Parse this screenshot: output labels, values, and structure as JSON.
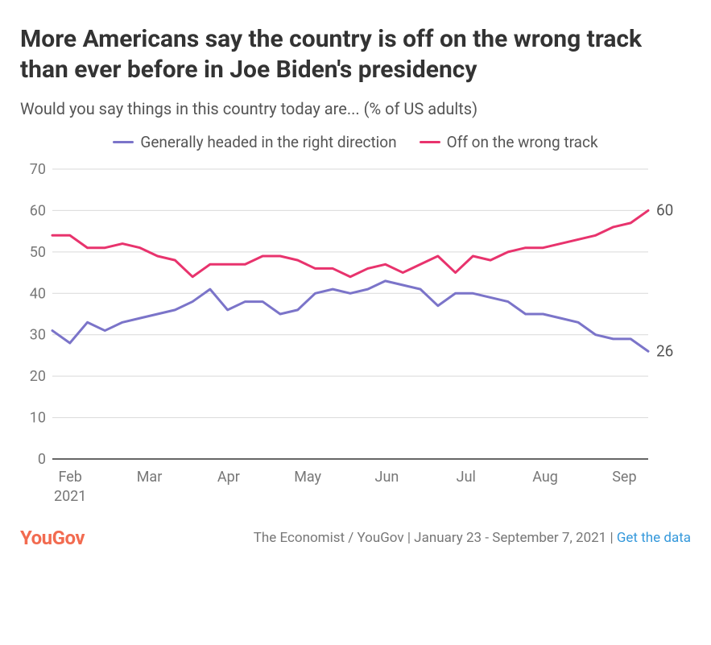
{
  "title": "More Americans say the country is off on the wrong track than ever before in Joe Biden's presidency",
  "subtitle": "Would you say things in this country today are... (% of US adults)",
  "chart": {
    "type": "line",
    "background_color": "#ffffff",
    "grid_color": "#d9d9d9",
    "axis_color": "#333333",
    "text_color": "#777777",
    "label_fontsize": 18,
    "ylim": [
      0,
      70
    ],
    "ytick_step": 10,
    "yticks": [
      0,
      10,
      20,
      30,
      40,
      50,
      60,
      70
    ],
    "x_labels": [
      "Feb",
      "Mar",
      "Apr",
      "May",
      "Jun",
      "Jul",
      "Aug",
      "Sep"
    ],
    "x_sublabel": "2021",
    "x_sublabel_index": 0,
    "line_width": 3,
    "end_label_fontsize": 19,
    "series": [
      {
        "name": "Generally headed in the right direction",
        "color": "#7b74c9",
        "end_label": "26",
        "data": [
          31,
          28,
          33,
          31,
          33,
          34,
          35,
          36,
          38,
          41,
          36,
          38,
          38,
          35,
          36,
          40,
          41,
          40,
          41,
          43,
          42,
          41,
          37,
          40,
          40,
          39,
          38,
          35,
          35,
          34,
          33,
          30,
          29,
          29,
          26
        ]
      },
      {
        "name": "Off on the wrong track",
        "color": "#e8336d",
        "end_label": "60",
        "data": [
          54,
          54,
          51,
          51,
          52,
          51,
          49,
          48,
          44,
          47,
          47,
          47,
          49,
          49,
          48,
          46,
          46,
          44,
          46,
          47,
          45,
          47,
          49,
          45,
          49,
          48,
          50,
          51,
          51,
          52,
          53,
          54,
          56,
          57,
          60
        ]
      }
    ]
  },
  "footer": {
    "logo": "YouGov",
    "source_prefix": "The Economist / YouGov | January 23 - September 7, 2021 | ",
    "link_text": "Get the data"
  },
  "colors": {
    "logo": "#f26b50",
    "link": "#3498db"
  }
}
